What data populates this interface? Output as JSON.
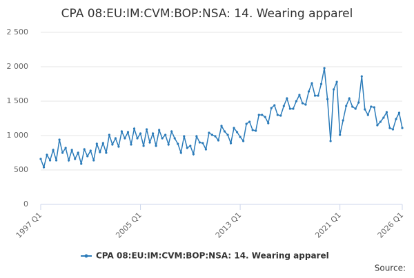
{
  "chart_data": {
    "type": "line",
    "title": "CPA 08:EU:IM:CVM:BOP:NSA: 14. Wearing apparel",
    "source": "Source:",
    "categories": [
      "1997 Q1",
      null,
      null,
      null,
      null,
      null,
      null,
      null,
      null,
      null,
      null,
      null,
      null,
      null,
      null,
      null,
      null,
      null,
      null,
      null,
      null,
      null,
      null,
      null,
      null,
      null,
      null,
      null,
      null,
      null,
      null,
      null,
      "2005 Q1",
      null,
      null,
      null,
      null,
      null,
      null,
      null,
      null,
      null,
      null,
      null,
      null,
      null,
      null,
      null,
      null,
      null,
      null,
      null,
      null,
      null,
      null,
      null,
      null,
      null,
      null,
      null,
      null,
      null,
      null,
      null,
      "2013 Q1",
      null,
      null,
      null,
      null,
      null,
      null,
      null,
      null,
      null,
      null,
      null,
      null,
      null,
      null,
      null,
      null,
      null,
      null,
      null,
      null,
      null,
      null,
      null,
      null,
      null,
      null,
      null,
      null,
      null,
      null,
      null,
      "2021 Q1",
      null,
      null,
      null,
      null,
      null,
      null,
      null,
      null,
      null,
      null,
      null,
      null,
      null,
      null,
      null,
      null,
      null,
      null,
      null,
      "2026 Q1"
    ],
    "series": [
      {
        "name": "CPA 08:EU:IM:CVM:BOP:NSA: 14. Wearing apparel",
        "color": "#2b7bb9",
        "values": [
          660,
          540,
          720,
          640,
          790,
          640,
          940,
          750,
          820,
          640,
          790,
          660,
          750,
          590,
          800,
          700,
          780,
          640,
          880,
          760,
          890,
          750,
          1010,
          870,
          960,
          840,
          1060,
          960,
          1050,
          870,
          1100,
          960,
          1030,
          850,
          1090,
          900,
          1030,
          850,
          1080,
          960,
          1010,
          870,
          1060,
          960,
          880,
          750,
          990,
          820,
          850,
          730,
          990,
          900,
          890,
          800,
          1040,
          1010,
          990,
          930,
          1140,
          1060,
          1010,
          890,
          1110,
          1050,
          980,
          920,
          1170,
          1200,
          1080,
          1070,
          1300,
          1300,
          1270,
          1180,
          1400,
          1440,
          1300,
          1290,
          1430,
          1540,
          1390,
          1390,
          1500,
          1590,
          1470,
          1450,
          1640,
          1760,
          1580,
          1580,
          1750,
          1980,
          1530,
          920,
          1670,
          1780,
          1010,
          1220,
          1430,
          1540,
          1420,
          1390,
          1480,
          1860,
          1380,
          1300,
          1420,
          1410,
          1150,
          1200,
          1260,
          1340,
          1110,
          1090,
          1240,
          1330,
          1110
        ]
      }
    ],
    "ylim": [
      0,
      2500
    ],
    "yticks": [
      0,
      500,
      {
        "value": 1000,
        "label": "1 000"
      },
      {
        "value": 1500,
        "label": "1 500"
      },
      {
        "value": 2000,
        "label": "2 000"
      },
      {
        "value": 2500,
        "label": "2 500"
      }
    ],
    "grid": true
  }
}
